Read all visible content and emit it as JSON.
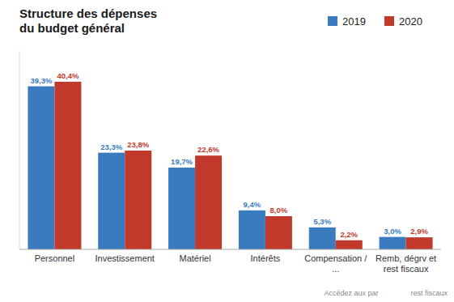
{
  "chart_data": {
    "type": "bar",
    "title": "Structure des dépenses\ndu budget général",
    "categories": [
      "Personnel",
      "Investissement",
      "Matériel",
      "Intérêts",
      "Compensation /\n...",
      "Remb, dégrv et\nrest fiscaux"
    ],
    "series": [
      {
        "name": "2019",
        "color": "#3a7abf",
        "values": [
          39.3,
          23.3,
          19.7,
          9.4,
          5.3,
          3.0
        ],
        "value_labels": [
          "39,3%",
          "23,3%",
          "19,7%",
          "9,4%",
          "5,3%",
          "3,0%"
        ]
      },
      {
        "name": "2020",
        "color": "#c0392b",
        "values": [
          40.4,
          23.8,
          22.6,
          8.0,
          2.2,
          2.9
        ],
        "value_labels": [
          "40,4%",
          "23,8%",
          "22,6%",
          "8,0%",
          "2,2%",
          "2,9%"
        ]
      }
    ],
    "ylim": [
      0,
      48
    ],
    "grid": false,
    "legend": "right",
    "data_labels": true,
    "tick_labels": "x",
    "annotations": [
      "Accédez aux par                rest fiscaux"
    ]
  }
}
